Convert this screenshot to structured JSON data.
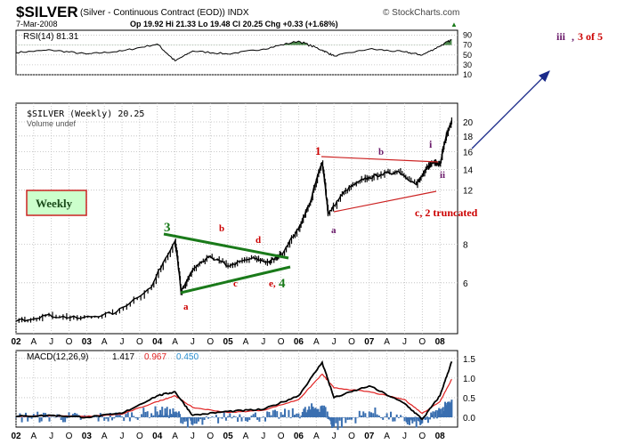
{
  "header": {
    "symbol": "$SILVER",
    "description": "(Silver - Continuous Contract (EOD)) INDX",
    "date": "7-Mar-2008",
    "quote": "Op 19.92  Hi 21.33  Lo 19.48  Cl 20.25  Chg +0.33 (+1.68%)",
    "quote_arrow": "▲",
    "watermark": "© StockCharts.com"
  },
  "annotations": {
    "weekly_label": "Weekly",
    "iii_label": "iii",
    "iii_sep": ",",
    "three_of_five": "3 of 5",
    "wave_3": "3",
    "wave_4": "4",
    "wave_a1": "a",
    "wave_b1": "b",
    "wave_c1": "c",
    "wave_d1": "d",
    "wave_e1": "e,",
    "wave_1": "1",
    "wave_a2": "a",
    "wave_b2": "b",
    "wave_c2_truncated": "c, 2 truncated",
    "wave_i": "i",
    "wave_ii": "ii"
  },
  "colors": {
    "price": "#000000",
    "rsi": "#000000",
    "rsi_overbought_fill": "#4f8a4f",
    "macd_line": "#000000",
    "signal_line": "#e02020",
    "histogram": "#3a6fb0",
    "macd_hist_label": "#2a8fd0",
    "wave_green": "#1a7a1a",
    "wave_red": "#cc0000",
    "wave_purple": "#6a1a6a",
    "arrow_blue": "#1a2a8a",
    "weekly_box_border": "#cc2222",
    "weekly_box_fill": "#ccffcc"
  },
  "chart_data": [
    {
      "type": "line",
      "panel": "rsi",
      "title": "RSI(14) 81.31",
      "y_ticks": [
        10,
        30,
        50,
        70,
        90
      ],
      "ylim": [
        10,
        100
      ],
      "overbought_level": 70,
      "x": [
        "2002-01",
        "2002-07",
        "2003-01",
        "2003-07",
        "2004-01",
        "2004-04",
        "2004-07",
        "2005-01",
        "2005-07",
        "2006-01",
        "2006-05",
        "2006-07",
        "2007-01",
        "2007-07",
        "2007-10",
        "2008-01",
        "2008-03"
      ],
      "values": [
        55,
        60,
        52,
        58,
        72,
        38,
        58,
        52,
        62,
        78,
        60,
        48,
        62,
        56,
        50,
        68,
        81
      ]
    },
    {
      "type": "line",
      "panel": "price",
      "title": "$SILVER (Weekly) 20.25",
      "volume_note": "Volume undef",
      "scale": "log",
      "y_ticks": [
        6,
        8,
        12,
        14,
        16,
        18,
        20
      ],
      "ylim": [
        4.1,
        23.0
      ],
      "x_ticks": [
        "02",
        "A",
        "J",
        "O",
        "03",
        "A",
        "J",
        "O",
        "04",
        "A",
        "J",
        "O",
        "05",
        "A",
        "J",
        "O",
        "06",
        "A",
        "J",
        "O",
        "07",
        "A",
        "J",
        "O",
        "08"
      ],
      "x": [
        "2002-01",
        "2002-06",
        "2002-12",
        "2003-06",
        "2003-12",
        "2004-04",
        "2004-05",
        "2004-07",
        "2004-10",
        "2005-01",
        "2005-05",
        "2005-08",
        "2005-10",
        "2006-01",
        "2006-03",
        "2006-05",
        "2006-06",
        "2006-09",
        "2006-12",
        "2007-03",
        "2007-06",
        "2007-09",
        "2007-11",
        "2007-12",
        "2008-01",
        "2008-02",
        "2008-03"
      ],
      "values": [
        4.5,
        4.7,
        4.6,
        4.8,
        5.8,
        8.2,
        5.6,
        6.6,
        7.3,
        6.8,
        7.2,
        7.0,
        7.4,
        9.0,
        11.0,
        14.8,
        10.0,
        12.0,
        13.0,
        13.5,
        13.8,
        12.5,
        14.3,
        14.8,
        14.6,
        17.8,
        20.25
      ]
    },
    {
      "type": "line",
      "panel": "macd",
      "title": "MACD(12,26,9)",
      "values_printed": {
        "macd": "1.417",
        "signal": "0.967",
        "histogram": "0.450"
      },
      "y_ticks": [
        0.0,
        0.5,
        1.0,
        1.5
      ],
      "ylim": [
        -0.25,
        1.7
      ],
      "x": [
        "2002-01",
        "2002-07",
        "2003-01",
        "2003-07",
        "2004-01",
        "2004-04",
        "2004-07",
        "2005-01",
        "2005-07",
        "2006-01",
        "2006-05",
        "2006-07",
        "2007-01",
        "2007-07",
        "2007-10",
        "2008-01",
        "2008-03"
      ],
      "series": [
        {
          "name": "MACD",
          "values": [
            0.02,
            0.05,
            0.0,
            0.1,
            0.55,
            0.65,
            0.05,
            0.15,
            0.2,
            0.55,
            1.4,
            0.5,
            0.8,
            0.35,
            -0.05,
            0.55,
            1.42
          ]
        },
        {
          "name": "Signal",
          "values": [
            0.02,
            0.04,
            0.02,
            0.08,
            0.4,
            0.55,
            0.25,
            0.12,
            0.18,
            0.45,
            1.1,
            0.75,
            0.65,
            0.45,
            0.1,
            0.4,
            0.97
          ]
        },
        {
          "name": "Histogram",
          "values": [
            0.0,
            0.01,
            -0.02,
            0.02,
            0.15,
            0.1,
            -0.2,
            0.03,
            0.02,
            0.1,
            0.3,
            -0.25,
            0.15,
            -0.1,
            -0.15,
            0.15,
            0.45
          ]
        }
      ]
    }
  ]
}
